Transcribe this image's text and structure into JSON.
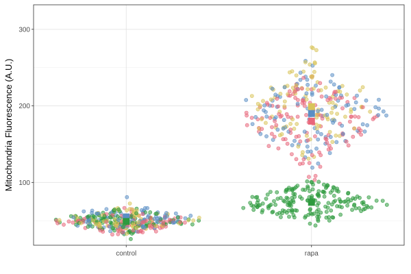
{
  "chart_data": {
    "type": "scatter",
    "subtype": "beeswarm",
    "title": "",
    "xlabel": "",
    "ylabel": "Mitochondria Fluorescence (A.U.)",
    "categories": [
      "control",
      "rapa"
    ],
    "ylim": [
      18,
      332
    ],
    "yticks": [
      100,
      200,
      300
    ],
    "grid": true,
    "legend": "none",
    "point_colors": [
      "#e8667a",
      "#5a8ec4",
      "#d9c45a",
      "#2e9a3e"
    ],
    "groups": [
      {
        "category": "control",
        "clusters": [
          {
            "color": "#e8667a",
            "center": 48,
            "spread": 8,
            "count": 90
          },
          {
            "color": "#5a8ec4",
            "center": 52,
            "spread": 9,
            "count": 90
          },
          {
            "color": "#d9c45a",
            "center": 52,
            "spread": 7,
            "count": 90
          },
          {
            "color": "#2e9a3e",
            "center": 50,
            "spread": 7,
            "count": 120
          }
        ],
        "summary": [
          {
            "color": "#5a8ec4",
            "value": 55
          },
          {
            "color": "#2e9a3e",
            "value": 49
          }
        ]
      },
      {
        "category": "rapa",
        "clusters": [
          {
            "color": "#e8667a",
            "center": 180,
            "spread": 28,
            "count": 130
          },
          {
            "color": "#5a8ec4",
            "center": 190,
            "spread": 30,
            "count": 100
          },
          {
            "color": "#d9c45a",
            "center": 198,
            "spread": 30,
            "count": 100
          },
          {
            "color": "#2e9a3e",
            "center": 74,
            "spread": 13,
            "count": 190
          }
        ],
        "summary": [
          {
            "color": "#d9c45a",
            "value": 199
          },
          {
            "color": "#5a8ec4",
            "value": 190
          },
          {
            "color": "#e8667a",
            "value": 180
          },
          {
            "color": "#2e9a3e",
            "value": 74
          }
        ]
      }
    ]
  }
}
